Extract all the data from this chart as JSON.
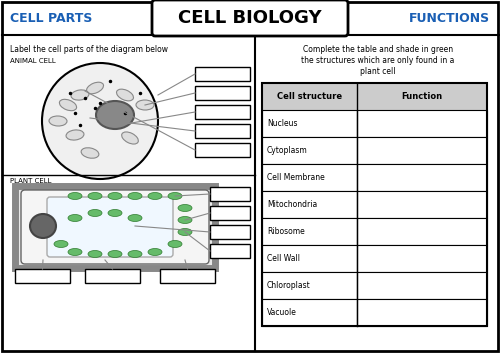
{
  "title": "CELL BIOLOGY",
  "left_header": "CELL PARTS",
  "right_header": "FUNCTIONS",
  "left_instruction": "Label the cell parts of the diagram below",
  "right_instruction": "Complete the table and shade in green\nthe structures which are only found in a\nplant cell",
  "animal_cell_label": "ANIMAL CELL",
  "plant_cell_label": "PLANT CELL",
  "table_headers": [
    "Cell structure",
    "Function"
  ],
  "table_rows": [
    "Nucleus",
    "Cytoplasm",
    "Cell Membrane",
    "Mitochondria",
    "Ribosome",
    "Cell Wall",
    "Chloroplast",
    "Vacuole"
  ],
  "bg_color": "#ffffff",
  "border_color": "#000000",
  "left_panel_color": "#ffffff",
  "right_panel_color": "#ffffff",
  "header_bg": "#ffffff",
  "table_header_bg": "#d0d0d0",
  "title_color": "#000000",
  "left_header_color": "#1a5fb4",
  "right_header_color": "#1a5fb4"
}
